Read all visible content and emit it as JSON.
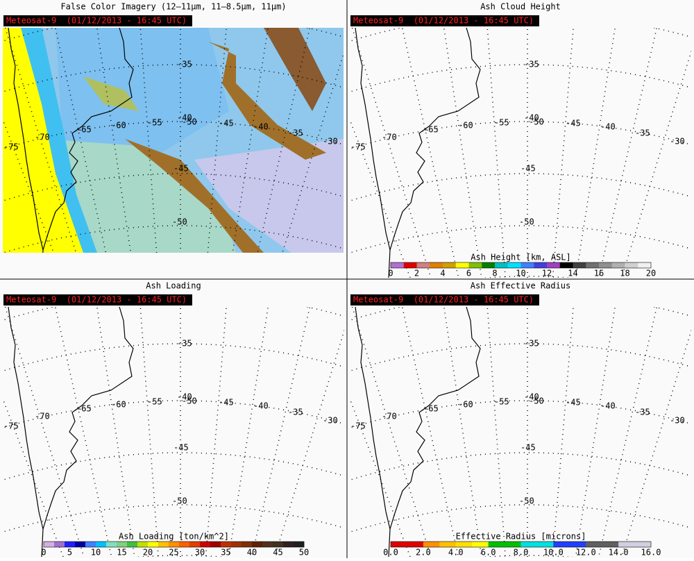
{
  "panels": [
    {
      "title": "False Color Imagery (12–11μm, 11–8.5μm, 11μm)",
      "timestamp": "Meteosat-9  (01/12/2013 - 16:45 UTC)"
    },
    {
      "title": "Ash Cloud Height",
      "timestamp": "Meteosat-9  (01/12/2013 - 16:45 UTC)",
      "colorbar": {
        "label": "Ash Height [km, ASL]",
        "ticks": [
          "0",
          "2",
          "4",
          "6",
          "8",
          "10",
          "12",
          "14",
          "16",
          "18",
          "20"
        ],
        "colors": [
          "#b070d0",
          "#e00000",
          "#d08080",
          "#e08000",
          "#d0a000",
          "#ffff00",
          "#80c000",
          "#008000",
          "#00c0c0",
          "#00e0ff",
          "#4080ff",
          "#4040e0",
          "#a040c0",
          "#000000",
          "#404040",
          "#707070",
          "#909090",
          "#b0b0b0",
          "#d0d0d0",
          "#f0f0f0"
        ]
      }
    },
    {
      "title": "Ash Loading",
      "timestamp": "Meteosat-9  (01/12/2013 - 16:45 UTC)",
      "colorbar": {
        "label": "Ash Loading [ton/km^2]",
        "ticks": [
          "0",
          "5",
          "10",
          "15",
          "20",
          "25",
          "30",
          "35",
          "40",
          "45",
          "50"
        ],
        "colors": [
          "#d0b0e0",
          "#a070d0",
          "#2020ff",
          "#0000a0",
          "#4080ff",
          "#00c0ff",
          "#80e0c0",
          "#80d080",
          "#40c040",
          "#c0e000",
          "#ffff00",
          "#ffc000",
          "#ff9000",
          "#ff6000",
          "#e04000",
          "#d00000",
          "#a00000",
          "#c03000",
          "#a03000",
          "#803000",
          "#602000",
          "#503020",
          "#403020",
          "#302020",
          "#202020"
        ]
      }
    },
    {
      "title": "Ash Effective Radius",
      "timestamp": "Meteosat-9  (01/12/2013 - 16:45 UTC)",
      "colorbar": {
        "label": "Effective Radius [microns]",
        "ticks": [
          "0.0",
          "2.0",
          "4.0",
          "6.0",
          "8.0",
          "10.0",
          "12.0",
          "14.0",
          "16.0"
        ],
        "colors": [
          "#e00000",
          "#e00000",
          "#ff9000",
          "#ffc000",
          "#ffe000",
          "#ffff00",
          "#00c000",
          "#00c000",
          "#00e0e0",
          "#00e0e0",
          "#2040ff",
          "#2040ff",
          "#606060",
          "#606060",
          "#d0d0e0",
          "#d0d0e0"
        ]
      }
    }
  ],
  "grid_labels": [
    "-35",
    "-40",
    "-45",
    "-50",
    "-55",
    "-60",
    "-65",
    "-70",
    "-75",
    "-30"
  ]
}
